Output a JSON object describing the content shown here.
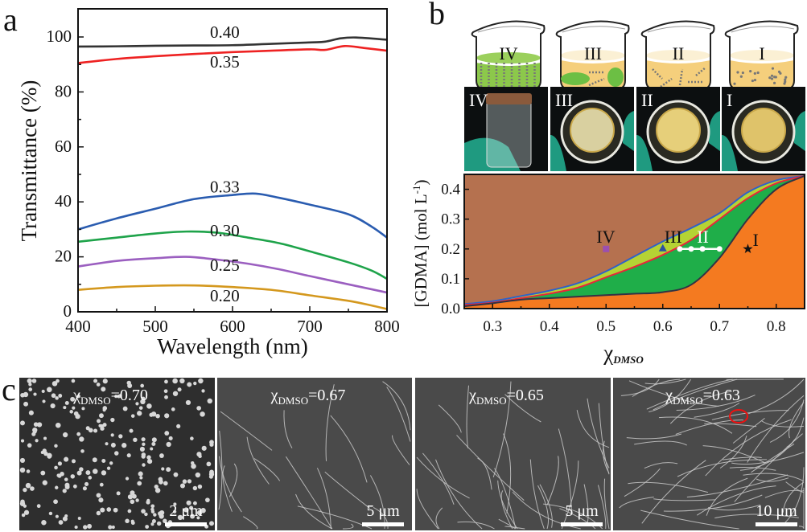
{
  "panels": {
    "a": "a",
    "b": "b",
    "c": "c"
  },
  "chart_data": [
    {
      "type": "line",
      "panel": "a",
      "xlabel": "Wavelength (nm)",
      "ylabel": "Transmittance (%)",
      "xlim": [
        400,
        800
      ],
      "ylim": [
        0,
        110
      ],
      "xticks": [
        400,
        500,
        600,
        700,
        800
      ],
      "yticks": [
        0,
        20,
        40,
        60,
        80,
        100
      ],
      "grid": false,
      "series": [
        {
          "name": "0.40",
          "color": "#333333",
          "label_at": [
            590,
            101.8
          ],
          "x": [
            400,
            450,
            500,
            550,
            600,
            650,
            700,
            720,
            740,
            760,
            800
          ],
          "y": [
            96.5,
            96.6,
            96.8,
            96.9,
            97,
            97.5,
            98,
            98.3,
            99.5,
            99.8,
            99
          ]
        },
        {
          "name": "0.35",
          "color": "#ee2222",
          "label_at": [
            590,
            90.9
          ],
          "x": [
            400,
            450,
            500,
            550,
            600,
            650,
            700,
            720,
            745,
            770,
            800
          ],
          "y": [
            90.5,
            92,
            93,
            93.8,
            94.5,
            95,
            95.5,
            95.3,
            96.7,
            96,
            95
          ]
        },
        {
          "name": "0.33",
          "color": "#2a5cb0",
          "label_at": [
            590,
            45.5
          ],
          "x": [
            400,
            450,
            500,
            550,
            600,
            630,
            660,
            700,
            750,
            780,
            800
          ],
          "y": [
            30,
            34,
            37.5,
            41,
            42.5,
            43,
            41.5,
            39,
            35.5,
            31,
            27
          ]
        },
        {
          "name": "0.30",
          "color": "#1ea34a",
          "label_at": [
            590,
            29.5
          ],
          "x": [
            400,
            450,
            500,
            540,
            580,
            620,
            660,
            700,
            750,
            780,
            800
          ],
          "y": [
            25.5,
            27,
            28.5,
            29.2,
            28.8,
            27,
            25,
            22,
            18,
            15,
            12
          ]
        },
        {
          "name": "0.25",
          "color": "#9b5fc0",
          "label_at": [
            590,
            17
          ],
          "x": [
            400,
            450,
            500,
            540,
            580,
            620,
            660,
            700,
            750,
            780,
            800
          ],
          "y": [
            16.5,
            18.5,
            19.5,
            20,
            19,
            17.5,
            15.5,
            13,
            10,
            8.2,
            7
          ]
        },
        {
          "name": "0.20",
          "color": "#d4981e",
          "label_at": [
            590,
            5.8
          ],
          "x": [
            400,
            450,
            500,
            550,
            600,
            650,
            700,
            750,
            780,
            800
          ],
          "y": [
            8,
            9,
            9.5,
            9.6,
            9,
            8,
            6,
            4,
            2.3,
            1
          ]
        }
      ]
    },
    {
      "type": "area",
      "panel": "b",
      "xlabel_main": "χ",
      "xlabel_sub": "DMSO",
      "ylabel_main": "[GDMA] (mol L",
      "ylabel_sup": "-1",
      "ylabel_end": ")",
      "xlim": [
        0.25,
        0.85
      ],
      "ylim": [
        0,
        0.45
      ],
      "xticks": [
        "0.3",
        "0.4",
        "0.5",
        "0.6",
        "0.7",
        "0.8"
      ],
      "yticks": [
        "0.0",
        "0.1",
        "0.2",
        "0.3",
        "0.4"
      ],
      "x": [
        0.25,
        0.3,
        0.35,
        0.4,
        0.45,
        0.5,
        0.55,
        0.6,
        0.65,
        0.7,
        0.75,
        0.8,
        0.85
      ],
      "boundaries": {
        "upper_blue": [
          0.015,
          0.025,
          0.042,
          0.06,
          0.085,
          0.125,
          0.175,
          0.225,
          0.27,
          0.32,
          0.39,
          0.43,
          0.445
        ],
        "middle_red": [
          0.012,
          0.02,
          0.035,
          0.05,
          0.07,
          0.105,
          0.14,
          0.18,
          0.23,
          0.3,
          0.37,
          0.42,
          0.445
        ],
        "lower_dark": [
          0.008,
          0.018,
          0.03,
          0.035,
          0.04,
          0.045,
          0.05,
          0.055,
          0.08,
          0.17,
          0.3,
          0.4,
          0.445
        ]
      },
      "region_colors": {
        "IV": "#b5714f",
        "III": "#b5d334",
        "II": "#1fae49",
        "I": "#f47a20"
      },
      "points": [
        {
          "label": "IV",
          "x": 0.5,
          "y": 0.2,
          "marker": "square",
          "color": "#9b4fb0"
        },
        {
          "label": "III",
          "x": 0.6,
          "y": 0.2,
          "marker": "triangle",
          "color": "#2d4fa0"
        },
        {
          "label": "II",
          "x": [
            0.63,
            0.65,
            0.67,
            0.7
          ],
          "y": 0.2,
          "marker": "circle-line",
          "color": "#ffffff"
        },
        {
          "label": "I",
          "x": 0.75,
          "y": 0.2,
          "marker": "star",
          "color": "#111111"
        }
      ]
    }
  ],
  "beakers": [
    {
      "label": "IV",
      "liquid": "#8cc84b"
    },
    {
      "label": "III",
      "liquid": "#f5cf7c"
    },
    {
      "label": "II",
      "liquid": "#f5cf7c"
    },
    {
      "label": "I",
      "liquid": "#f5cf7c"
    }
  ],
  "photos": [
    "IV",
    "III",
    "II",
    "I"
  ],
  "sem_images": [
    {
      "chi_symbol": "χ",
      "chi_sub": "DMSO",
      "value": "=0.70",
      "scale_bar": "2 μm",
      "morphology": "particles"
    },
    {
      "chi_symbol": "χ",
      "chi_sub": "DMSO",
      "value": "=0.67",
      "scale_bar": "5 μm",
      "morphology": "sparse-chains"
    },
    {
      "chi_symbol": "χ",
      "chi_sub": "DMSO",
      "value": "=0.65",
      "scale_bar": "5 μm",
      "morphology": "chains"
    },
    {
      "chi_symbol": "χ",
      "chi_sub": "DMSO",
      "value": "=0.63",
      "scale_bar": "10 μm",
      "morphology": "dense-chains"
    }
  ]
}
